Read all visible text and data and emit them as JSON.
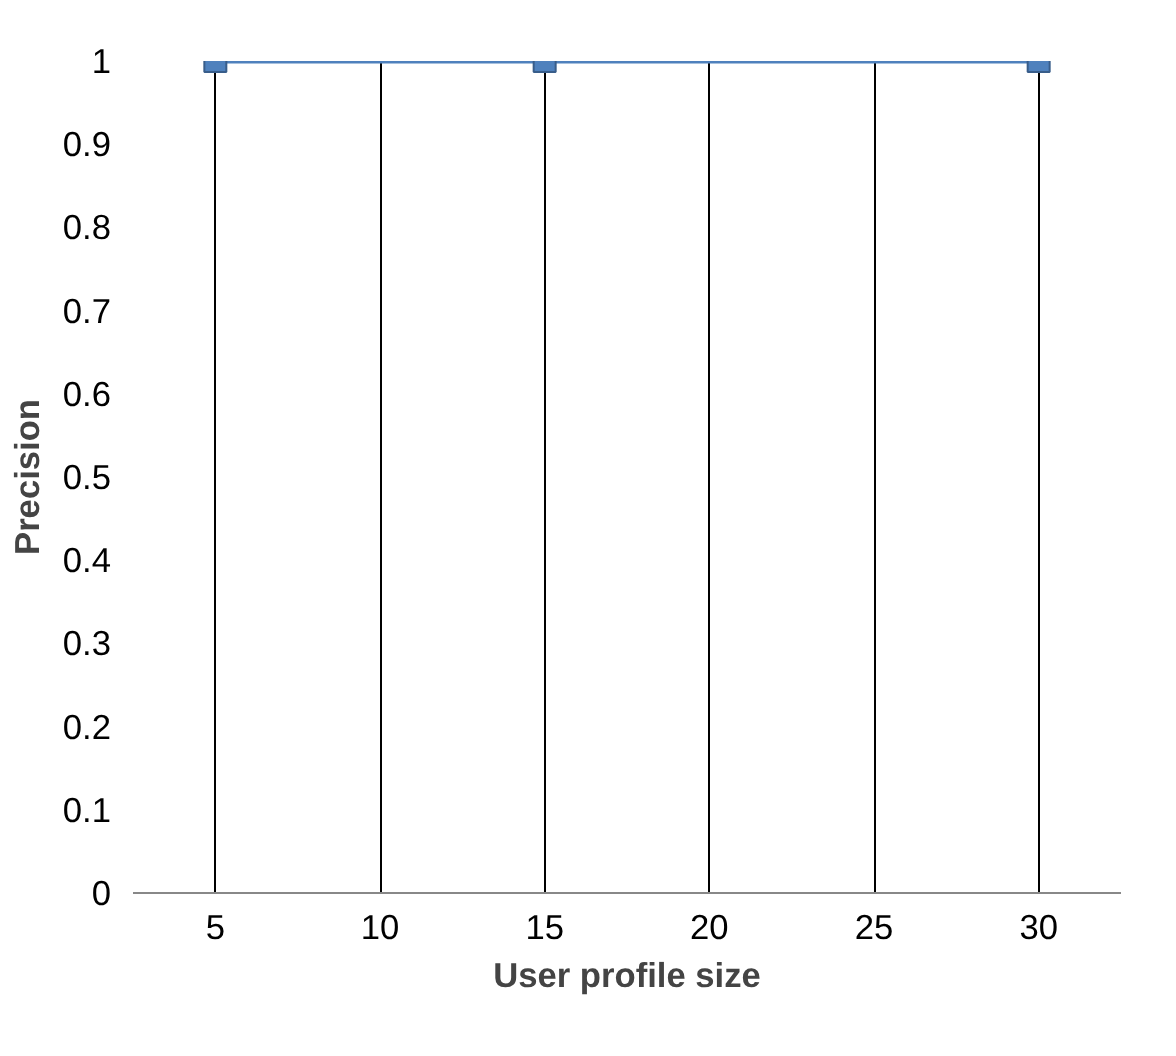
{
  "chart_data": {
    "type": "line",
    "xlabel": "User profile size",
    "ylabel": "Precision",
    "series": [
      {
        "x": [
          5,
          15,
          30
        ],
        "values": [
          1,
          1,
          1
        ],
        "color": "#4f81bd"
      }
    ],
    "xlim": [
      2.5,
      32.5
    ],
    "xticks": [
      5,
      10,
      15,
      20,
      25,
      30
    ],
    "ylim": [
      0,
      1
    ],
    "yticks": [
      0,
      0.1,
      0.2,
      0.3,
      0.4,
      0.5,
      0.6,
      0.7,
      0.8,
      0.9,
      1
    ],
    "grid": "x",
    "marker": "square",
    "line_style": "solid"
  }
}
